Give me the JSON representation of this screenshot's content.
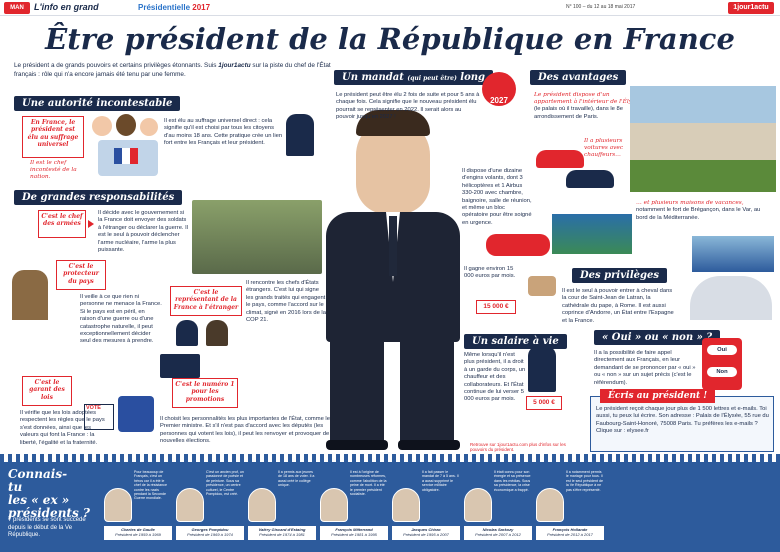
{
  "header": {
    "logo_text": "MAN",
    "logo_brand": "L'info en grand",
    "section_label": "Présidentielle",
    "section_year": "2017",
    "issue": "N° 100 – du 12 au 18 mai 2017",
    "brand": "1jour1actu"
  },
  "title": "Être président de la République en France",
  "intro": {
    "text1": "Le président a de grands pouvoirs et certains privilèges étonnants. Suis ",
    "brand": "1jour1actu",
    "text2": " sur la piste du chef de l'État français : rôle qui n'a encore jamais été tenu par une femme."
  },
  "autorite": {
    "heading": "Une autorité incontestable",
    "tag": "En France, le président est élu au suffrage universel",
    "side": "Il est le chef incontesté de la nation.",
    "text": "Il est élu au suffrage universel direct : cela signifie qu'il est choisi par tous les citoyens d'au moins 18 ans. Cette pratique crée un lien fort entre les Français et leur président."
  },
  "responsabilites": {
    "heading": "De grandes responsabilités",
    "armees_tag": "C'est le chef des armées",
    "armees_text": "Il décide avec le gouvernement si la France doit envoyer des soldats à l'étranger ou déclarer la guerre. Il est le seul à pouvoir déclencher l'arme nucléaire, l'arme la plus puissante.",
    "protecteur_tag": "C'est le protecteur du pays",
    "protecteur_text": "Il veille à ce que rien ni personne ne menace la France. Si le pays est en péril, en raison d'une guerre ou d'une catastrophe naturelle, il peut exceptionnellement décider seul des mesures à prendre.",
    "representant_tag": "C'est le représentant de la France à l'étranger",
    "representant_text": "Il rencontre les chefs d'États étrangers. C'est lui qui signe les grands traités qui engagent le pays, comme l'accord sur le climat, signé en 2016 lors de la COP 21.",
    "garant_tag": "C'est le garant des lois",
    "garant_text": "Il vérifie que les lois adoptées respectent les règles que le pays s'est données, ainsi que les valeurs qui font la France : la liberté, l'égalité et la fraternité.",
    "vote_label": "VOTE",
    "numero_tag": "C'est le numéro 1 pour les promotions",
    "numero_text": "Il choisit les personnalités les plus importantes de l'État, comme le Premier ministre. Et s'il n'est pas d'accord avec les députés (les personnes qui votent les lois), il peut les renvoyer et provoquer de nouvelles élections."
  },
  "mandat": {
    "heading": "Un mandat",
    "heading_small": "(qui peut être)",
    "heading_end": "long",
    "badge": "2027",
    "text": "Le président peut être élu 2 fois de suite et pour 5 ans à chaque fois. Cela signifie que le nouveau président élu pourrait se représenter en 2022. Il serait alors au pouvoir jusqu'en 2027 !"
  },
  "avantages": {
    "heading": "Des avantages",
    "elysee": "Le président dispose d'un appartement à l'intérieur de l'Élysée",
    "elysee_rest": "(le palais où il travaille), dans le 8e arrondissement de Paris.",
    "cars": "Il a plusieurs voitures avec chauffeurs…",
    "planes": "Il dispose d'une dizaine d'engins volants, dont 3 hélicoptères et 1 Airbus 330-200 avec chambre, baignoire, salle de réunion, et même un bloc opératoire pour être soigné en urgence.",
    "vacation_red": "… et plusieurs maisons de vacances,",
    "vacation": "notamment le fort de Brégançon, dans le Var, au bord de la Méditerranée.",
    "salary_text": "Il gagne environ 15 000 euros par mois.",
    "salary_badge": "15 000 €"
  },
  "salaire": {
    "heading": "Un salaire à vie",
    "text": "Même lorsqu'il n'est plus président, il a droit à un garde du corps, un chauffeur et des collaborateurs. Et l'État continue de lui verser 5 000 euros par mois.",
    "badge": "5 000 €",
    "link": "Retrouve sur 1jour1actu.com plus d'infos sur les pouvoirs du président."
  },
  "privileges": {
    "heading": "Des privilèges",
    "text": "Il est le seul à pouvoir entrer à cheval dans la cour de Saint-Jean de Latran, la cathédrale du pape, à Rome. Il est aussi coprince d'Andorre, un État entre l'Espagne et la France."
  },
  "ouinon": {
    "heading": "« Oui » ou « non » ?",
    "text": "Il a la possibilité de faire appel directement aux Français, en leur demandant de se prononcer par « oui » ou « non » sur un sujet précis (c'est le référendum).",
    "oui": "Oui",
    "non": "Non"
  },
  "ecris": {
    "heading": "Écris au président !",
    "text": "Le président reçoit chaque jour plus de 1 500 lettres et e-mails. Toi aussi, tu peux lui écrire. Son adresse : Palais de l'Élysée, 55 rue du Faubourg-Saint-Honoré, 75008 Paris. Tu préfères les e-mails ? Clique sur : elysee.fr"
  },
  "connais": {
    "title_1": "Connais-",
    "title_2": "tu",
    "title_3": "les « ex »",
    "title_4": "présidents ?",
    "sub": "7 présidents se sont succédé depuis le début de la Ve République.",
    "cards": [
      {
        "text": "Pour beaucoup de Français, c'est un héros car il a été le chef de la résistance contre les nazis pendant la Seconde Guerre mondiale.",
        "name": "Charles de Gaulle",
        "years": "Président de 1959 à 1969"
      },
      {
        "text": "C'est un ancien prof, un passionné de poésie et de peinture. Sous sa présidence, un centre culturel, le Centre Pompidou, est créé.",
        "name": "Georges Pompidou",
        "years": "Président de 1969 à 1974"
      },
      {
        "text": "Il a permis aux jeunes de 18 ans de voter. Il a aussi créé le collège unique.",
        "name": "Valéry Giscard d'Estaing",
        "years": "Président de 1974 à 1981"
      },
      {
        "text": "Il est à l'origine de nombreuses réformes, comme l'abolition de la peine de mort. Il a été le premier président socialiste.",
        "name": "François Mitterrand",
        "years": "Président de 1981 à 1995"
      },
      {
        "text": "Il a fait passer le mandat de 7 à 5 ans. Il a aussi supprimé le service militaire obligatoire.",
        "name": "Jacques Chirac",
        "years": "Président de 1995 à 2007"
      },
      {
        "text": "Il était connu pour son énergie et sa présence dans les médias. Sous sa présidence, la crise économique a frappé.",
        "name": "Nicolas Sarkozy",
        "years": "Président de 2007 à 2012"
      },
      {
        "text": "Il a notamment permis le mariage pour tous. Il est le seul président de la Ve République à ne pas s'être représenté.",
        "name": "François Hollande",
        "years": "Président de 2012 à 2017"
      }
    ]
  },
  "colors": {
    "navy": "#1a2a4a",
    "red": "#e1262d",
    "blue": "#2d5b9c"
  }
}
